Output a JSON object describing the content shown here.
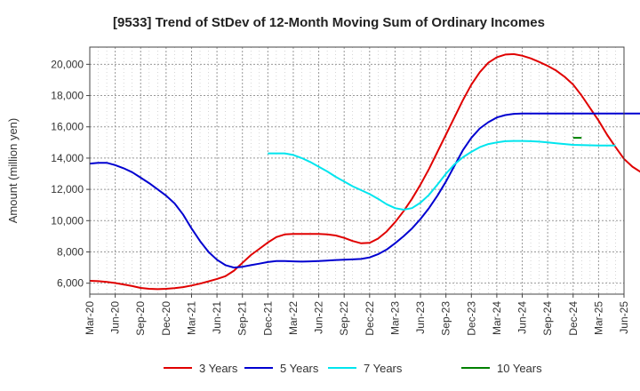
{
  "chart_data": {
    "type": "line",
    "title": "[9533]  Trend of StDev of 12-Month Moving Sum of Ordinary Incomes",
    "ylabel": "Amount (million yen)",
    "xlabel": "",
    "x_ticks": [
      "Mar-20",
      "Jun-20",
      "Sep-20",
      "Dec-20",
      "Mar-21",
      "Jun-21",
      "Sep-21",
      "Dec-21",
      "Mar-22",
      "Jun-22",
      "Sep-22",
      "Dec-22",
      "Mar-23",
      "Jun-23",
      "Sep-23",
      "Dec-23",
      "Mar-24",
      "Jun-24",
      "Sep-24",
      "Dec-24",
      "Mar-25",
      "Jun-25"
    ],
    "y_ticks": [
      "6,000",
      "8,000",
      "10,000",
      "12,000",
      "14,000",
      "16,000",
      "18,000",
      "20,000"
    ],
    "y_tick_values": [
      6000,
      8000,
      10000,
      12000,
      14000,
      16000,
      18000,
      20000
    ],
    "ylim": [
      5300,
      21100
    ],
    "grid": true,
    "legend_position": "bottom",
    "series": [
      {
        "name": "3 Years",
        "color": "#e00000",
        "start": "Mar-20",
        "values": [
          6150,
          6130,
          6080,
          6010,
          5920,
          5820,
          5700,
          5640,
          5620,
          5640,
          5680,
          5750,
          5850,
          5970,
          6120,
          6270,
          6450,
          6800,
          7300,
          7800,
          8200,
          8600,
          8950,
          9120,
          9150,
          9150,
          9150,
          9150,
          9120,
          9050,
          8900,
          8700,
          8550,
          8580,
          8850,
          9300,
          9900,
          10600,
          11400,
          12300,
          13300,
          14400,
          15500,
          16600,
          17700,
          18700,
          19500,
          20100,
          20450,
          20620,
          20650,
          20550,
          20380,
          20150,
          19900,
          19600,
          19200,
          18700,
          18000,
          17200,
          16400,
          15500,
          14700,
          13950,
          13450,
          13100
        ]
      },
      {
        "name": "5 Years",
        "color": "#0000d0",
        "start": "Mar-20",
        "values": [
          13650,
          13700,
          13700,
          13550,
          13350,
          13100,
          12750,
          12400,
          12000,
          11600,
          11100,
          10400,
          9500,
          8700,
          8000,
          7500,
          7150,
          7000,
          7050,
          7150,
          7250,
          7350,
          7420,
          7420,
          7400,
          7380,
          7400,
          7420,
          7450,
          7480,
          7500,
          7520,
          7550,
          7650,
          7850,
          8150,
          8550,
          9000,
          9500,
          10100,
          10800,
          11600,
          12500,
          13500,
          14500,
          15300,
          15900,
          16300,
          16600,
          16750,
          16830,
          16850,
          16850,
          16850,
          16850,
          16850,
          16850,
          16850,
          16850,
          16850,
          16850,
          16850,
          16850,
          16850,
          16850,
          16850
        ]
      },
      {
        "name": "7 Years",
        "color": "#00e5ee",
        "start": "Dec-21",
        "values": [
          14300,
          14300,
          14300,
          14200,
          14000,
          13750,
          13450,
          13150,
          12800,
          12500,
          12200,
          11950,
          11700,
          11400,
          11050,
          10800,
          10700,
          10800,
          11150,
          11650,
          12300,
          13000,
          13600,
          14050,
          14400,
          14700,
          14900,
          15000,
          15080,
          15100,
          15100,
          15080,
          15050,
          15000,
          14950,
          14900,
          14850,
          14830,
          14820,
          14800,
          14800,
          14800
        ]
      },
      {
        "name": "10 Years",
        "color": "#008000",
        "start": "Dec-24",
        "values": [
          15300,
          15300
        ]
      }
    ]
  }
}
